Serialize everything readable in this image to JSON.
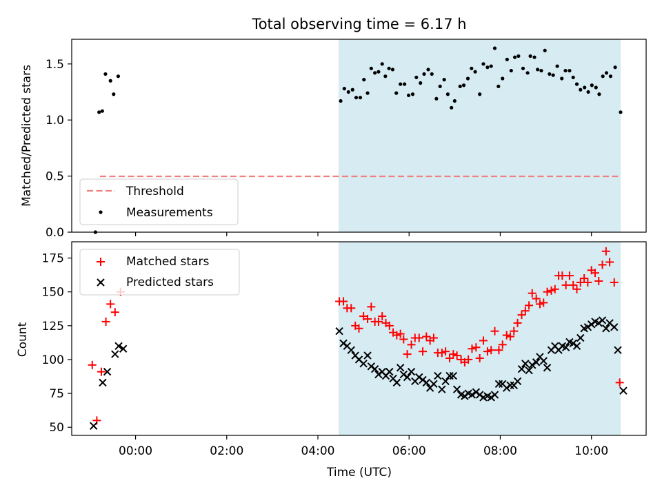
{
  "title": "Total observing time = 6.17 h",
  "colors": {
    "shade": "#add8e6",
    "threshold": "#f08080",
    "matched": "#ff0000",
    "predicted": "#000000",
    "measurement": "#000000"
  },
  "chart_data": [
    {
      "type": "scatter",
      "title": "Total observing time = 6.17 h",
      "xlabel": "",
      "ylabel": "Matched/Predicted stars",
      "xlim": [
        "-1.4",
        "11.2"
      ],
      "ylim": [
        0,
        1.72
      ],
      "yticks": [
        "0.0",
        "0.5",
        "1.0",
        "1.5"
      ],
      "shaded_span": [
        "04:30",
        "10:40"
      ],
      "threshold": {
        "value": 0.5,
        "x_range": [
          "-0:50",
          "10:40"
        ]
      },
      "legend": {
        "position": "lower-left",
        "entries": [
          "Threshold",
          "Measurements"
        ]
      },
      "series": [
        {
          "name": "Measurements",
          "points": [
            [
              -0.88,
              0.0
            ],
            [
              -0.8,
              1.07
            ],
            [
              -0.73,
              1.08
            ],
            [
              -0.66,
              1.41
            ],
            [
              -0.55,
              1.35
            ],
            [
              -0.48,
              1.23
            ],
            [
              -0.38,
              1.39
            ],
            [
              4.5,
              1.17
            ],
            [
              4.58,
              1.28
            ],
            [
              4.67,
              1.25
            ],
            [
              4.76,
              1.27
            ],
            [
              4.84,
              1.2
            ],
            [
              4.93,
              1.2
            ],
            [
              5.01,
              1.36
            ],
            [
              5.09,
              1.24
            ],
            [
              5.17,
              1.46
            ],
            [
              5.25,
              1.42
            ],
            [
              5.33,
              1.43
            ],
            [
              5.41,
              1.5
            ],
            [
              5.48,
              1.39
            ],
            [
              5.56,
              1.46
            ],
            [
              5.64,
              1.45
            ],
            [
              5.72,
              1.24
            ],
            [
              5.81,
              1.32
            ],
            [
              5.9,
              1.32
            ],
            [
              5.99,
              1.22
            ],
            [
              6.08,
              1.23
            ],
            [
              6.16,
              1.38
            ],
            [
              6.25,
              1.33
            ],
            [
              6.33,
              1.41
            ],
            [
              6.42,
              1.45
            ],
            [
              6.5,
              1.41
            ],
            [
              6.6,
              1.19
            ],
            [
              6.68,
              1.3
            ],
            [
              6.77,
              1.36
            ],
            [
              6.85,
              1.23
            ],
            [
              6.93,
              1.11
            ],
            [
              7.0,
              1.17
            ],
            [
              7.12,
              1.3
            ],
            [
              7.2,
              1.31
            ],
            [
              7.29,
              1.37
            ],
            [
              7.37,
              1.46
            ],
            [
              7.45,
              1.43
            ],
            [
              7.55,
              1.23
            ],
            [
              7.63,
              1.5
            ],
            [
              7.72,
              1.47
            ],
            [
              7.8,
              1.48
            ],
            [
              7.88,
              1.64
            ],
            [
              7.96,
              1.3
            ],
            [
              8.05,
              1.37
            ],
            [
              8.15,
              1.54
            ],
            [
              8.24,
              1.44
            ],
            [
              8.32,
              1.56
            ],
            [
              8.4,
              1.57
            ],
            [
              8.5,
              1.46
            ],
            [
              8.6,
              1.42
            ],
            [
              8.66,
              1.57
            ],
            [
              8.75,
              1.56
            ],
            [
              8.82,
              1.45
            ],
            [
              8.9,
              1.44
            ],
            [
              8.98,
              1.62
            ],
            [
              9.08,
              1.41
            ],
            [
              9.16,
              1.4
            ],
            [
              9.25,
              1.48
            ],
            [
              9.35,
              1.37
            ],
            [
              9.43,
              1.44
            ],
            [
              9.52,
              1.44
            ],
            [
              9.6,
              1.38
            ],
            [
              9.68,
              1.32
            ],
            [
              9.76,
              1.27
            ],
            [
              9.85,
              1.29
            ],
            [
              9.93,
              1.25
            ],
            [
              10.01,
              1.31
            ],
            [
              10.1,
              1.29
            ],
            [
              10.17,
              1.23
            ],
            [
              10.25,
              1.39
            ],
            [
              10.33,
              1.42
            ],
            [
              10.42,
              1.39
            ],
            [
              10.52,
              1.47
            ],
            [
              10.64,
              1.07
            ]
          ]
        }
      ]
    },
    {
      "type": "scatter",
      "title": "",
      "xlabel": "Time (UTC)",
      "ylabel": "Count",
      "xlim": [
        "-1.4",
        "11.2"
      ],
      "ylim": [
        44,
        187
      ],
      "xticks": [
        "00:00",
        "02:00",
        "04:00",
        "06:00",
        "08:00",
        "10:00"
      ],
      "yticks": [
        "50",
        "75",
        "100",
        "125",
        "150",
        "175"
      ],
      "shaded_span": [
        "04:30",
        "10:40"
      ],
      "legend": {
        "position": "upper-left",
        "entries": [
          "Matched stars",
          "Predicted stars"
        ]
      },
      "series": [
        {
          "name": "Matched stars",
          "points": [
            [
              -0.95,
              96
            ],
            [
              -0.85,
              55
            ],
            [
              -0.75,
              91
            ],
            [
              -0.65,
              128
            ],
            [
              -0.55,
              141
            ],
            [
              -0.45,
              135
            ],
            [
              -0.33,
              150
            ],
            [
              4.47,
              143
            ],
            [
              4.56,
              143
            ],
            [
              4.64,
              138
            ],
            [
              4.73,
              138
            ],
            [
              4.82,
              125
            ],
            [
              4.9,
              123
            ],
            [
              5.0,
              132
            ],
            [
              5.09,
              130
            ],
            [
              5.17,
              139
            ],
            [
              5.25,
              128
            ],
            [
              5.33,
              128
            ],
            [
              5.41,
              132
            ],
            [
              5.49,
              127
            ],
            [
              5.57,
              125
            ],
            [
              5.65,
              120
            ],
            [
              5.73,
              118
            ],
            [
              5.81,
              119
            ],
            [
              5.88,
              115
            ],
            [
              5.96,
              104
            ],
            [
              6.05,
              111
            ],
            [
              6.13,
              116
            ],
            [
              6.22,
              116
            ],
            [
              6.3,
              106
            ],
            [
              6.38,
              117
            ],
            [
              6.46,
              114
            ],
            [
              6.54,
              116
            ],
            [
              6.63,
              105
            ],
            [
              6.72,
              105
            ],
            [
              6.8,
              106
            ],
            [
              6.89,
              101
            ],
            [
              6.97,
              104
            ],
            [
              7.05,
              103
            ],
            [
              7.14,
              100
            ],
            [
              7.22,
              98
            ],
            [
              7.3,
              100
            ],
            [
              7.38,
              108
            ],
            [
              7.47,
              109
            ],
            [
              7.55,
              101
            ],
            [
              7.63,
              114
            ],
            [
              7.72,
              106
            ],
            [
              7.8,
              107
            ],
            [
              7.88,
              121
            ],
            [
              7.97,
              107
            ],
            [
              8.05,
              111
            ],
            [
              8.14,
              118
            ],
            [
              8.22,
              117
            ],
            [
              8.3,
              121
            ],
            [
              8.38,
              127
            ],
            [
              8.47,
              133
            ],
            [
              8.55,
              136
            ],
            [
              8.63,
              140
            ],
            [
              8.7,
              149
            ],
            [
              8.79,
              145
            ],
            [
              8.87,
              141
            ],
            [
              8.95,
              142
            ],
            [
              9.03,
              150
            ],
            [
              9.12,
              151
            ],
            [
              9.2,
              152
            ],
            [
              9.28,
              162
            ],
            [
              9.36,
              162
            ],
            [
              9.44,
              155
            ],
            [
              9.52,
              162
            ],
            [
              9.6,
              155
            ],
            [
              9.68,
              152
            ],
            [
              9.76,
              157
            ],
            [
              9.84,
              160
            ],
            [
              9.92,
              157
            ],
            [
              10.0,
              166
            ],
            [
              10.08,
              164
            ],
            [
              10.16,
              158
            ],
            [
              10.24,
              170
            ],
            [
              10.32,
              180
            ],
            [
              10.4,
              172
            ],
            [
              10.5,
              157
            ],
            [
              10.62,
              83
            ]
          ]
        },
        {
          "name": "Predicted stars",
          "points": [
            [
              -0.92,
              51
            ],
            [
              -0.72,
              83
            ],
            [
              -0.62,
              91
            ],
            [
              -0.45,
              104
            ],
            [
              -0.37,
              110
            ],
            [
              -0.27,
              108
            ],
            [
              4.47,
              121
            ],
            [
              4.56,
              112
            ],
            [
              4.64,
              110
            ],
            [
              4.73,
              107
            ],
            [
              4.82,
              103
            ],
            [
              4.9,
              100
            ],
            [
              5.0,
              97
            ],
            [
              5.09,
              103
            ],
            [
              5.17,
              95
            ],
            [
              5.25,
              93
            ],
            [
              5.33,
              89
            ],
            [
              5.41,
              91
            ],
            [
              5.49,
              88
            ],
            [
              5.57,
              91
            ],
            [
              5.65,
              86
            ],
            [
              5.73,
              83
            ],
            [
              5.81,
              94
            ],
            [
              5.88,
              89
            ],
            [
              5.96,
              87
            ],
            [
              6.05,
              91
            ],
            [
              6.13,
              84
            ],
            [
              6.22,
              87
            ],
            [
              6.3,
              85
            ],
            [
              6.38,
              83
            ],
            [
              6.46,
              79
            ],
            [
              6.54,
              82
            ],
            [
              6.63,
              88
            ],
            [
              6.72,
              78
            ],
            [
              6.8,
              84
            ],
            [
              6.89,
              88
            ],
            [
              6.97,
              88
            ],
            [
              7.05,
              78
            ],
            [
              7.14,
              74
            ],
            [
              7.22,
              73
            ],
            [
              7.3,
              75
            ],
            [
              7.38,
              74
            ],
            [
              7.47,
              76
            ],
            [
              7.55,
              74
            ],
            [
              7.63,
              72
            ],
            [
              7.72,
              73
            ],
            [
              7.8,
              72
            ],
            [
              7.88,
              74
            ],
            [
              7.97,
              82
            ],
            [
              8.05,
              82
            ],
            [
              8.14,
              79
            ],
            [
              8.22,
              81
            ],
            [
              8.3,
              81
            ],
            [
              8.38,
              84
            ],
            [
              8.47,
              93
            ],
            [
              8.55,
              97
            ],
            [
              8.63,
              92
            ],
            [
              8.7,
              96
            ],
            [
              8.79,
              98
            ],
            [
              8.87,
              102
            ],
            [
              8.95,
              99
            ],
            [
              9.03,
              94
            ],
            [
              9.12,
              107
            ],
            [
              9.2,
              110
            ],
            [
              9.28,
              107
            ],
            [
              9.36,
              110
            ],
            [
              9.44,
              109
            ],
            [
              9.52,
              113
            ],
            [
              9.6,
              112
            ],
            [
              9.68,
              110
            ],
            [
              9.76,
              116
            ],
            [
              9.84,
              123
            ],
            [
              9.92,
              124
            ],
            [
              10.0,
              126
            ],
            [
              10.08,
              128
            ],
            [
              10.16,
              127
            ],
            [
              10.24,
              129
            ],
            [
              10.32,
              123
            ],
            [
              10.4,
              127
            ],
            [
              10.5,
              124
            ],
            [
              10.58,
              107
            ],
            [
              10.7,
              77
            ]
          ]
        }
      ]
    }
  ]
}
